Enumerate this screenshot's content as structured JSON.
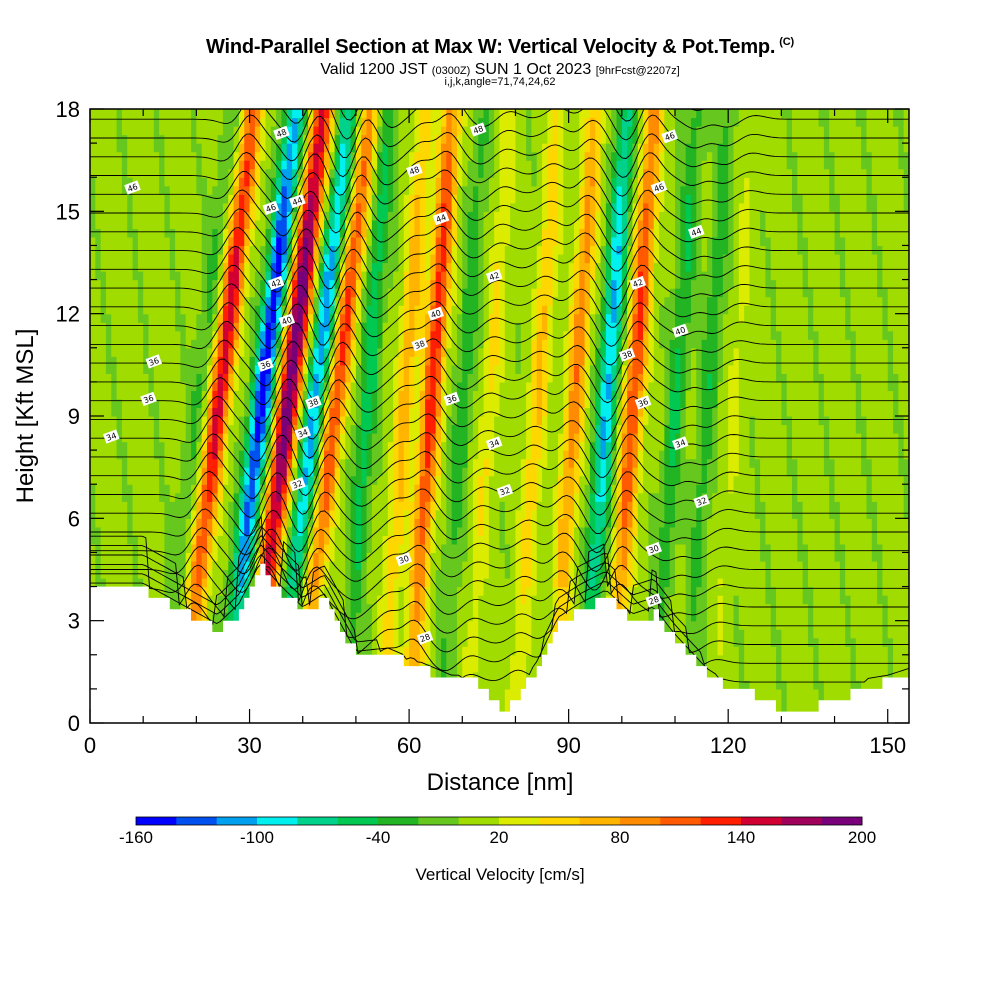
{
  "chart_data": {
    "type": "heatmap",
    "title": "Wind-Parallel Section at Max W: Vertical Velocity & Pot.Temp.",
    "title_mark": "(C)",
    "subtitle_main": "Valid 1200 JST",
    "subtitle_z": "(0300Z)",
    "subtitle_date": "SUN 1 Oct 2023",
    "subtitle_fcst": "[9hrFcst@2207z]",
    "subtitle2": "i,j,k,angle=71,74,24,62",
    "xlabel": "Distance [nm]",
    "ylabel": "Height [Kft MSL]",
    "xlim": [
      0,
      154
    ],
    "ylim": [
      0,
      18
    ],
    "x_ticks": [
      0,
      30,
      60,
      90,
      120,
      150
    ],
    "y_ticks": [
      0,
      3,
      6,
      9,
      12,
      15,
      18
    ],
    "colorbar": {
      "title": "Vertical Velocity [cm/s]",
      "tick_values": [
        -160,
        -100,
        -40,
        20,
        80,
        140,
        200
      ],
      "levels": [
        -160,
        -140,
        -120,
        -100,
        -80,
        -60,
        -40,
        -20,
        0,
        20,
        40,
        60,
        80,
        100,
        120,
        140,
        160,
        180,
        200
      ],
      "colors": [
        "#0000ff",
        "#0050f0",
        "#00a0f0",
        "#00f0f0",
        "#00d28c",
        "#00c850",
        "#22b422",
        "#66c81e",
        "#a0dc00",
        "#dcec00",
        "#ffd700",
        "#ffb400",
        "#ff8c00",
        "#ff5a00",
        "#ff1e00",
        "#d20032",
        "#a0005a",
        "#780078"
      ]
    },
    "updrafts": [
      {
        "x": 24,
        "w": 150
      },
      {
        "x": 37,
        "w": 200
      },
      {
        "x": 46,
        "w": 120
      },
      {
        "x": 59,
        "w": 70
      },
      {
        "x": 64,
        "w": 130
      },
      {
        "x": 75,
        "w": 40
      },
      {
        "x": 84,
        "w": 60
      },
      {
        "x": 91,
        "w": 90
      },
      {
        "x": 102,
        "w": 120
      },
      {
        "x": 121,
        "w": 20
      }
    ],
    "downdrafts": [
      {
        "x": 20,
        "w": -30
      },
      {
        "x": 32,
        "w": -160
      },
      {
        "x": 42,
        "w": -120
      },
      {
        "x": 52,
        "w": -60
      },
      {
        "x": 70,
        "w": -40
      },
      {
        "x": 97,
        "w": -110
      },
      {
        "x": 110,
        "w": -50
      },
      {
        "x": 116,
        "w": -40
      }
    ],
    "theta_contours": {
      "levels": [
        28,
        30,
        32,
        34,
        36,
        38,
        40,
        42,
        44,
        46,
        48
      ],
      "labels": [
        {
          "text": "48",
          "x": 36,
          "y": 17.3
        },
        {
          "text": "48",
          "x": 73,
          "y": 17.4
        },
        {
          "text": "46",
          "x": 109,
          "y": 17.2
        },
        {
          "text": "46",
          "x": 8,
          "y": 15.7
        },
        {
          "text": "48",
          "x": 61,
          "y": 16.2
        },
        {
          "text": "46",
          "x": 107,
          "y": 15.7
        },
        {
          "text": "46",
          "x": 34,
          "y": 15.1
        },
        {
          "text": "44",
          "x": 39,
          "y": 15.3
        },
        {
          "text": "44",
          "x": 66,
          "y": 14.8
        },
        {
          "text": "44",
          "x": 114,
          "y": 14.4
        },
        {
          "text": "42",
          "x": 76,
          "y": 13.1
        },
        {
          "text": "42",
          "x": 103,
          "y": 12.9
        },
        {
          "text": "42",
          "x": 35,
          "y": 12.9
        },
        {
          "text": "40",
          "x": 37,
          "y": 11.8
        },
        {
          "text": "40",
          "x": 65,
          "y": 12.0
        },
        {
          "text": "40",
          "x": 111,
          "y": 11.5
        },
        {
          "text": "38",
          "x": 62,
          "y": 11.1
        },
        {
          "text": "38",
          "x": 101,
          "y": 10.8
        },
        {
          "text": "36",
          "x": 12,
          "y": 10.6
        },
        {
          "text": "36",
          "x": 33,
          "y": 10.5
        },
        {
          "text": "36",
          "x": 11,
          "y": 9.5
        },
        {
          "text": "36",
          "x": 68,
          "y": 9.5
        },
        {
          "text": "36",
          "x": 104,
          "y": 9.4
        },
        {
          "text": "38",
          "x": 42,
          "y": 9.4
        },
        {
          "text": "34",
          "x": 4,
          "y": 8.4
        },
        {
          "text": "34",
          "x": 40,
          "y": 8.5
        },
        {
          "text": "34",
          "x": 76,
          "y": 8.2
        },
        {
          "text": "34",
          "x": 111,
          "y": 8.2
        },
        {
          "text": "32",
          "x": 39,
          "y": 7.0
        },
        {
          "text": "32",
          "x": 78,
          "y": 6.8
        },
        {
          "text": "32",
          "x": 115,
          "y": 6.5
        },
        {
          "text": "30",
          "x": 59,
          "y": 4.8
        },
        {
          "text": "30",
          "x": 106,
          "y": 5.1
        },
        {
          "text": "28",
          "x": 106,
          "y": 3.6
        },
        {
          "text": "28",
          "x": 63,
          "y": 2.5
        }
      ]
    }
  }
}
